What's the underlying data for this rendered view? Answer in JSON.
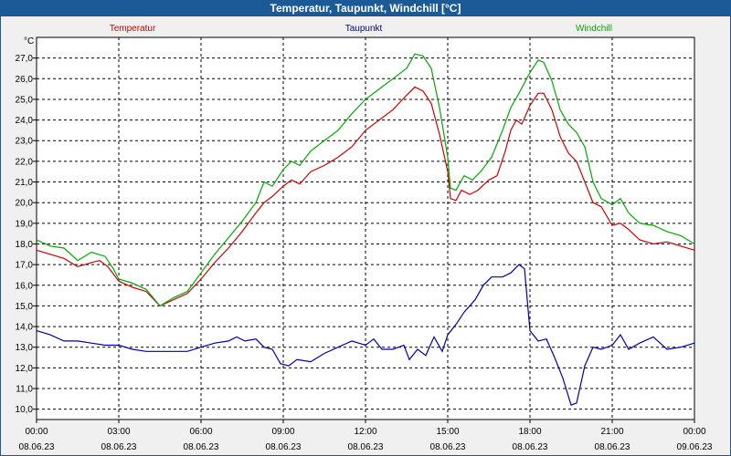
{
  "window": {
    "title": "Temperatur, Taupunkt, Windchill [°C]"
  },
  "chart_data": {
    "type": "line",
    "title": "Temperatur, Taupunkt, Windchill [°C]",
    "ylabel": "°C",
    "ylim": [
      9.5,
      28.0
    ],
    "xlim": [
      0,
      24
    ],
    "y_ticks": [
      "10,0",
      "11,0",
      "12,0",
      "13,0",
      "14,0",
      "15,0",
      "16,0",
      "17,0",
      "18,0",
      "19,0",
      "20,0",
      "21,0",
      "22,0",
      "23,0",
      "24,0",
      "25,0",
      "26,0",
      "27,0"
    ],
    "x_ticks": [
      {
        "time": "00:00",
        "date": "08.06.23"
      },
      {
        "time": "03:00",
        "date": "08.06.23"
      },
      {
        "time": "06:00",
        "date": "08.06.23"
      },
      {
        "time": "09:00",
        "date": "08.06.23"
      },
      {
        "time": "12:00",
        "date": "08.06.23"
      },
      {
        "time": "15:00",
        "date": "08.06.23"
      },
      {
        "time": "18:00",
        "date": "08.06.23"
      },
      {
        "time": "21:00",
        "date": "08.06.23"
      },
      {
        "time": "00:00",
        "date": "09.06.23"
      }
    ],
    "grid": true,
    "legend_position": "top",
    "series": [
      {
        "name": "Temperatur",
        "color": "#cc0000",
        "points": [
          [
            0,
            17.7
          ],
          [
            0.5,
            17.5
          ],
          [
            1,
            17.3
          ],
          [
            1.5,
            16.9
          ],
          [
            2,
            17.1
          ],
          [
            2.3,
            17.2
          ],
          [
            2.6,
            16.9
          ],
          [
            3,
            16.2
          ],
          [
            3.5,
            15.9
          ],
          [
            4,
            15.7
          ],
          [
            4.5,
            15.0
          ],
          [
            5,
            15.3
          ],
          [
            5.5,
            15.6
          ],
          [
            6,
            16.3
          ],
          [
            6.5,
            17.1
          ],
          [
            7,
            17.8
          ],
          [
            7.5,
            18.6
          ],
          [
            8,
            19.5
          ],
          [
            8.3,
            20.0
          ],
          [
            8.6,
            20.3
          ],
          [
            9,
            20.8
          ],
          [
            9.3,
            21.1
          ],
          [
            9.6,
            20.9
          ],
          [
            10,
            21.5
          ],
          [
            10.5,
            21.8
          ],
          [
            11,
            22.2
          ],
          [
            11.5,
            22.7
          ],
          [
            12,
            23.5
          ],
          [
            12.5,
            24.0
          ],
          [
            13,
            24.5
          ],
          [
            13.5,
            25.2
          ],
          [
            13.8,
            25.6
          ],
          [
            14.1,
            25.4
          ],
          [
            14.4,
            24.8
          ],
          [
            14.7,
            23.3
          ],
          [
            15,
            21.5
          ],
          [
            15.1,
            20.2
          ],
          [
            15.3,
            20.1
          ],
          [
            15.5,
            20.6
          ],
          [
            15.8,
            20.4
          ],
          [
            16.1,
            20.6
          ],
          [
            16.5,
            21.1
          ],
          [
            16.8,
            21.3
          ],
          [
            17.1,
            22.5
          ],
          [
            17.3,
            23.5
          ],
          [
            17.5,
            24.0
          ],
          [
            17.7,
            23.8
          ],
          [
            18,
            24.7
          ],
          [
            18.3,
            25.3
          ],
          [
            18.5,
            25.3
          ],
          [
            18.8,
            24.5
          ],
          [
            19.1,
            23.2
          ],
          [
            19.4,
            22.4
          ],
          [
            19.7,
            22.0
          ],
          [
            20,
            21.0
          ],
          [
            20.3,
            20.0
          ],
          [
            20.6,
            19.8
          ],
          [
            21,
            18.9
          ],
          [
            21.3,
            19.0
          ],
          [
            21.6,
            18.7
          ],
          [
            22,
            18.2
          ],
          [
            22.5,
            18.0
          ],
          [
            23,
            18.1
          ],
          [
            23.5,
            17.9
          ],
          [
            24,
            17.7
          ]
        ]
      },
      {
        "name": "Taupunkt",
        "color": "#0000aa",
        "points": [
          [
            0,
            13.8
          ],
          [
            0.5,
            13.6
          ],
          [
            1,
            13.3
          ],
          [
            1.5,
            13.3
          ],
          [
            2,
            13.2
          ],
          [
            2.5,
            13.1
          ],
          [
            3,
            13.1
          ],
          [
            3.5,
            12.9
          ],
          [
            4,
            12.8
          ],
          [
            4.5,
            12.8
          ],
          [
            5,
            12.8
          ],
          [
            5.5,
            12.8
          ],
          [
            6,
            13.0
          ],
          [
            6.5,
            13.2
          ],
          [
            7,
            13.3
          ],
          [
            7.3,
            13.5
          ],
          [
            7.6,
            13.3
          ],
          [
            8,
            13.4
          ],
          [
            8.3,
            13.0
          ],
          [
            8.6,
            12.9
          ],
          [
            8.9,
            12.2
          ],
          [
            9.2,
            12.1
          ],
          [
            9.5,
            12.4
          ],
          [
            10,
            12.3
          ],
          [
            10.5,
            12.7
          ],
          [
            11,
            13.0
          ],
          [
            11.5,
            13.3
          ],
          [
            12,
            13.1
          ],
          [
            12.3,
            13.4
          ],
          [
            12.6,
            12.9
          ],
          [
            13,
            12.9
          ],
          [
            13.4,
            13.1
          ],
          [
            13.6,
            12.4
          ],
          [
            13.9,
            12.9
          ],
          [
            14.2,
            12.6
          ],
          [
            14.5,
            13.5
          ],
          [
            14.8,
            12.8
          ],
          [
            15,
            13.6
          ],
          [
            15.3,
            14.1
          ],
          [
            15.6,
            14.7
          ],
          [
            16,
            15.3
          ],
          [
            16.3,
            16.0
          ],
          [
            16.6,
            16.4
          ],
          [
            17,
            16.4
          ],
          [
            17.3,
            16.6
          ],
          [
            17.6,
            17.0
          ],
          [
            17.8,
            16.8
          ],
          [
            18,
            13.8
          ],
          [
            18.3,
            13.3
          ],
          [
            18.6,
            13.4
          ],
          [
            18.9,
            12.5
          ],
          [
            19.2,
            11.5
          ],
          [
            19.5,
            10.2
          ],
          [
            19.7,
            10.3
          ],
          [
            20,
            12.1
          ],
          [
            20.3,
            13.0
          ],
          [
            20.6,
            12.9
          ],
          [
            21,
            13.1
          ],
          [
            21.3,
            13.6
          ],
          [
            21.6,
            12.9
          ],
          [
            22,
            13.2
          ],
          [
            22.5,
            13.5
          ],
          [
            23,
            12.9
          ],
          [
            23.5,
            13.0
          ],
          [
            24,
            13.2
          ]
        ]
      },
      {
        "name": "Windchill",
        "color": "#00aa00",
        "points": [
          [
            0,
            18.2
          ],
          [
            0.5,
            17.9
          ],
          [
            1,
            17.8
          ],
          [
            1.5,
            17.2
          ],
          [
            2,
            17.6
          ],
          [
            2.5,
            17.4
          ],
          [
            2.8,
            16.8
          ],
          [
            3,
            16.3
          ],
          [
            3.5,
            16.1
          ],
          [
            4,
            15.8
          ],
          [
            4.5,
            15.0
          ],
          [
            5,
            15.4
          ],
          [
            5.5,
            15.7
          ],
          [
            6,
            16.6
          ],
          [
            6.5,
            17.5
          ],
          [
            7,
            18.3
          ],
          [
            7.5,
            19.1
          ],
          [
            8,
            20.0
          ],
          [
            8.3,
            21.0
          ],
          [
            8.6,
            20.8
          ],
          [
            9,
            21.6
          ],
          [
            9.3,
            22.0
          ],
          [
            9.6,
            21.8
          ],
          [
            10,
            22.5
          ],
          [
            10.5,
            23.0
          ],
          [
            11,
            23.5
          ],
          [
            11.5,
            24.3
          ],
          [
            12,
            25.0
          ],
          [
            12.5,
            25.5
          ],
          [
            13,
            26.0
          ],
          [
            13.5,
            26.5
          ],
          [
            13.8,
            27.2
          ],
          [
            14.1,
            27.1
          ],
          [
            14.4,
            26.5
          ],
          [
            14.7,
            24.6
          ],
          [
            15,
            22.2
          ],
          [
            15.1,
            20.7
          ],
          [
            15.3,
            20.6
          ],
          [
            15.6,
            21.3
          ],
          [
            15.9,
            21.1
          ],
          [
            16.2,
            21.5
          ],
          [
            16.6,
            22.2
          ],
          [
            17,
            23.5
          ],
          [
            17.3,
            24.6
          ],
          [
            17.6,
            25.3
          ],
          [
            18,
            26.3
          ],
          [
            18.3,
            26.9
          ],
          [
            18.5,
            26.8
          ],
          [
            18.8,
            25.9
          ],
          [
            19.1,
            24.5
          ],
          [
            19.4,
            23.8
          ],
          [
            19.7,
            23.4
          ],
          [
            20,
            22.7
          ],
          [
            20.3,
            21.0
          ],
          [
            20.6,
            20.2
          ],
          [
            21,
            19.9
          ],
          [
            21.3,
            20.2
          ],
          [
            21.6,
            19.5
          ],
          [
            22,
            19.0
          ],
          [
            22.5,
            18.9
          ],
          [
            23,
            18.6
          ],
          [
            23.5,
            18.4
          ],
          [
            24,
            18.0
          ]
        ]
      }
    ]
  }
}
